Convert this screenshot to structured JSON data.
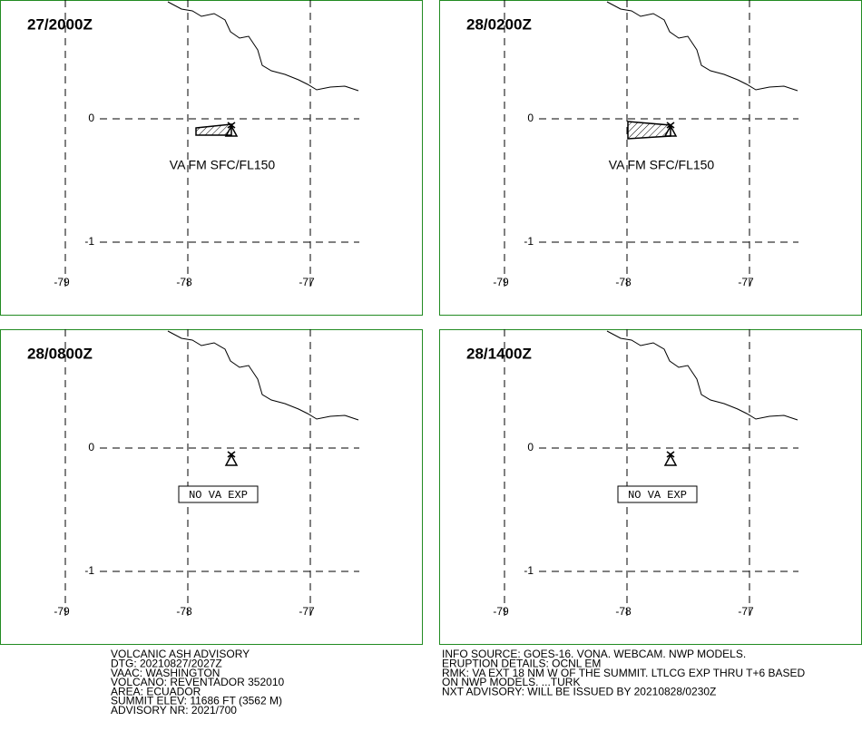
{
  "panels": [
    {
      "time": "27/2000Z",
      "lat_labels": [
        "0",
        "-1"
      ],
      "lon_labels": [
        "-79",
        "-78",
        "-77"
      ],
      "annotation": "VA FM SFC/FL150"
    },
    {
      "time": "28/0200Z",
      "lat_labels": [
        "0",
        "-1"
      ],
      "lon_labels": [
        "-79",
        "-78",
        "-77"
      ],
      "annotation": "VA FM SFC/FL150"
    },
    {
      "time": "28/0800Z",
      "lat_labels": [
        "0",
        "-1"
      ],
      "lon_labels": [
        "-79",
        "-78",
        "-77"
      ],
      "box": "NO VA EXP"
    },
    {
      "time": "28/1400Z",
      "lat_labels": [
        "0",
        "-1"
      ],
      "lon_labels": [
        "-79",
        "-78",
        "-77"
      ],
      "box": "NO VA EXP"
    }
  ],
  "advisory_left": [
    "VOLCANIC ASH ADVISORY",
    "DTG: 20210827/2027Z",
    "VAAC: WASHINGTON",
    "VOLCANO: REVENTADOR 352010",
    "AREA: ECUADOR",
    "SUMMIT ELEV: 11686 FT (3562 M)",
    "ADVISORY NR: 2021/700"
  ],
  "advisory_right": [
    "INFO SOURCE: GOES-16. VONA. WEBCAM. NWP MODELS.",
    "ERUPTION DETAILS: OCNL EM",
    "RMK: VA EXT 18 NM W OF THE SUMMIT. LTLCG EXP THRU T+6 BASED",
    "ON NWP MODELS. ...TURK",
    "NXT ADVISORY: WILL BE ISSUED BY 20210828/0230Z"
  ]
}
